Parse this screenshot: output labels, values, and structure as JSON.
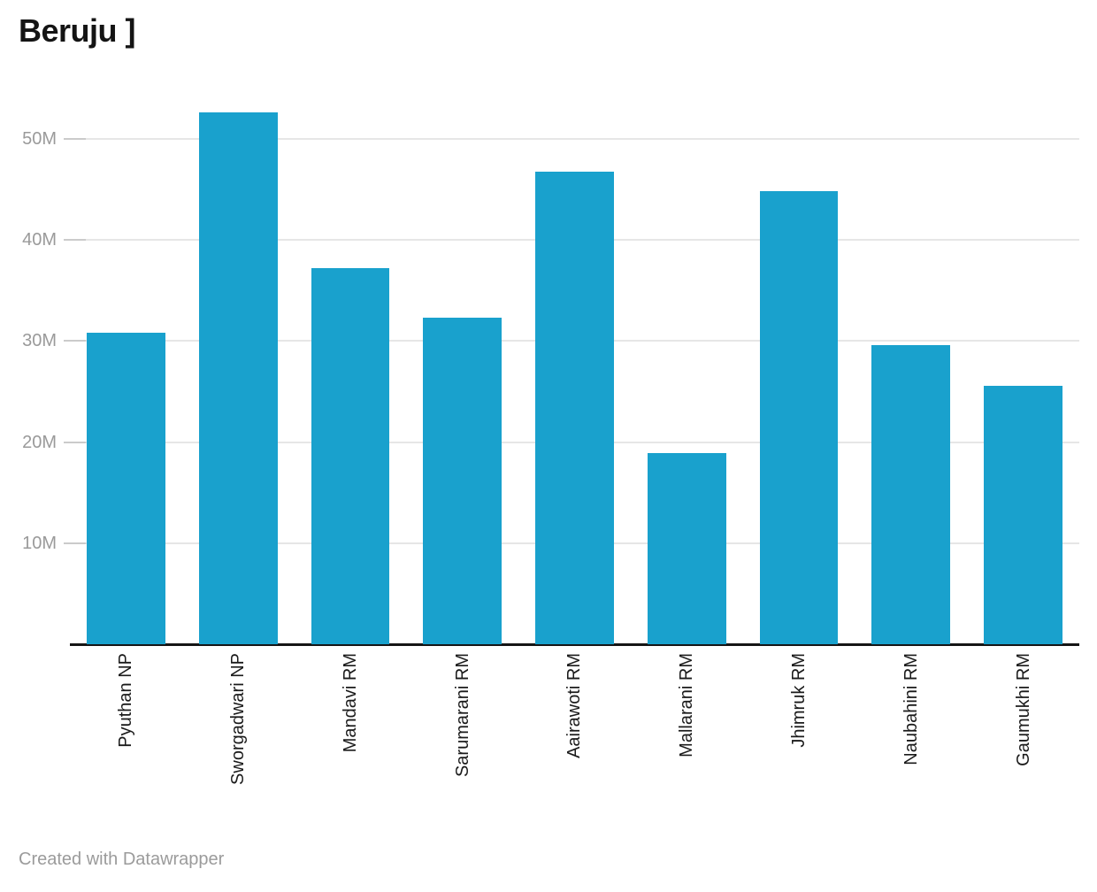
{
  "chart_data": {
    "type": "bar",
    "title": "Beruju ]",
    "categories": [
      "Pyuthan NP",
      "Sworgadwari NP",
      "Mandavi RM",
      "Sarumarani RM",
      "Aairawoti RM",
      "Mallarani RM",
      "Jhimruk RM",
      "Naubahini RM",
      "Gaumukhi RM"
    ],
    "values": [
      30.8,
      52.6,
      37.2,
      32.3,
      46.8,
      18.9,
      44.8,
      29.6,
      25.6
    ],
    "value_unit": "M",
    "ylim": [
      0,
      55
    ],
    "yticks": [
      {
        "value": 10,
        "label": "10M"
      },
      {
        "value": 20,
        "label": "20M"
      },
      {
        "value": 30,
        "label": "30M"
      },
      {
        "value": 40,
        "label": "40M"
      },
      {
        "value": 50,
        "label": "50M"
      }
    ],
    "grid": "horizontal",
    "legend": "none",
    "colors": {
      "bar": "#19a1cd",
      "gridline": "#e6e6e6",
      "tick_stub": "#cbcbcb",
      "axis_line": "#151515",
      "y_label": "#9a9a9a",
      "x_label": "#1a1a1a",
      "title": "#141414",
      "credit": "#9b9b9b"
    }
  },
  "footer": {
    "credit": "Created with Datawrapper"
  }
}
